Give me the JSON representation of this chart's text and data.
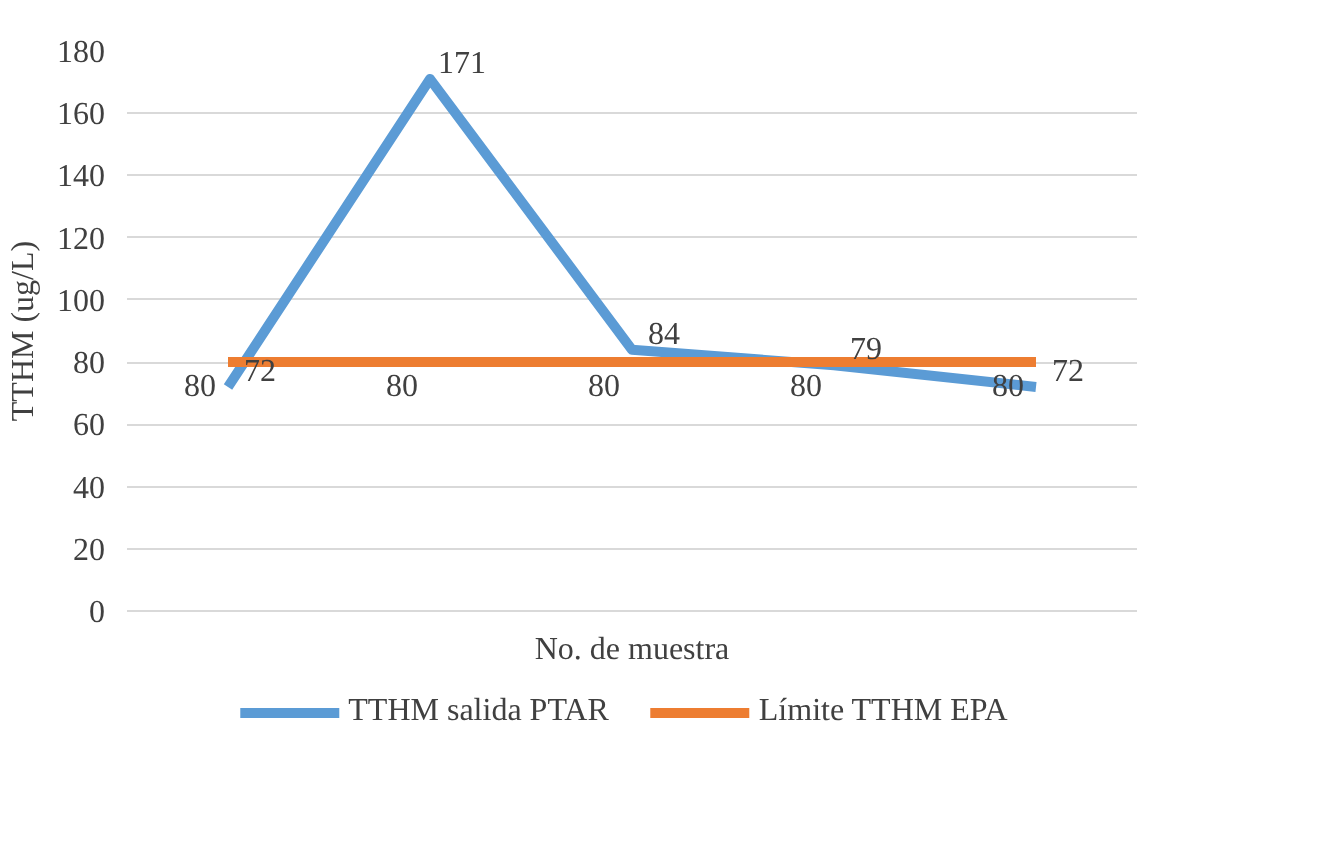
{
  "chart_data": {
    "type": "line",
    "ylabel": "TTHM (ug/L)",
    "xlabel": "No. de muestra",
    "categories": [
      null,
      null,
      null,
      null,
      null
    ],
    "series": [
      {
        "name": "TTHM salida PTAR",
        "color": "#5b9bd5",
        "values": [
          72,
          171,
          84,
          79,
          72
        ]
      },
      {
        "name": "Límite TTHM EPA",
        "color": "#ed7d31",
        "values": [
          80,
          80,
          80,
          80,
          80
        ]
      }
    ],
    "ylim": [
      0,
      180
    ],
    "yticks": [
      0,
      20,
      40,
      60,
      80,
      100,
      120,
      140,
      160,
      180
    ],
    "grid": "y",
    "legend": "bottom",
    "data_labels": true,
    "marker": "none",
    "line_style": "solid"
  }
}
